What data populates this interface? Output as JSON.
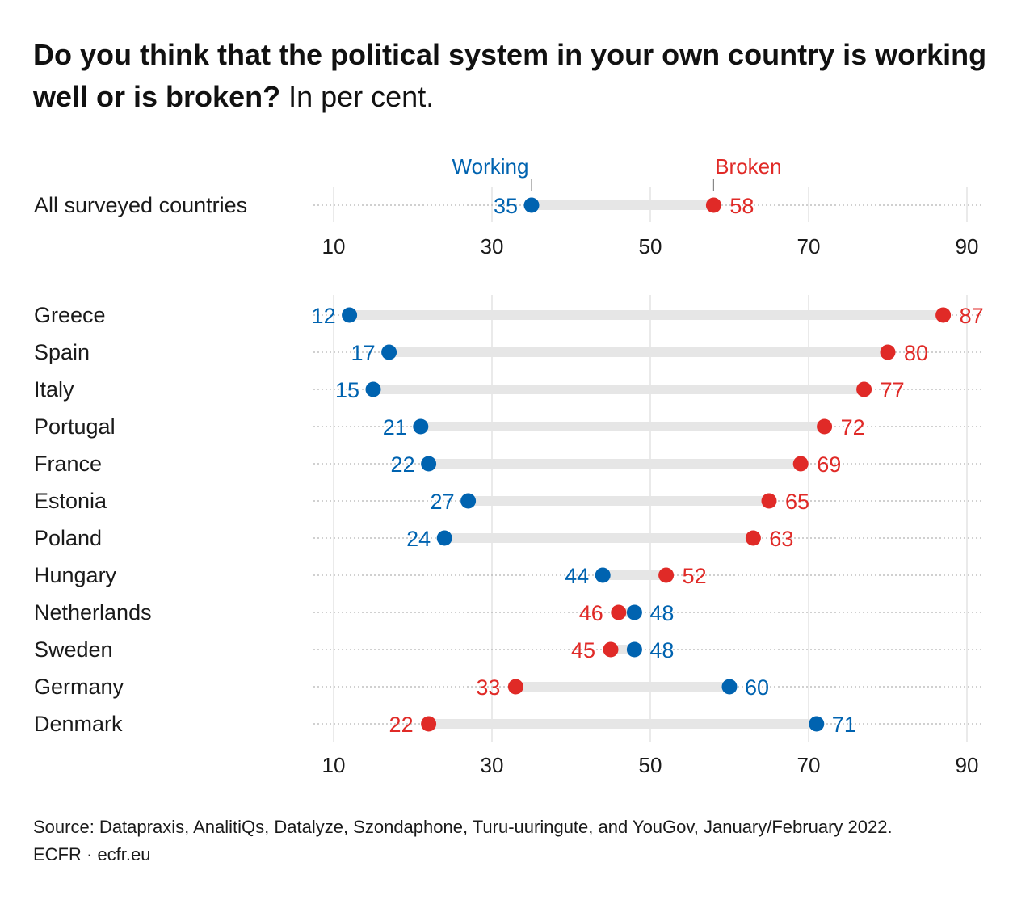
{
  "title": {
    "bold": "Do you think that the political system in your own country is working well or is broken?",
    "unit": "In per cent."
  },
  "chart_data": {
    "type": "dot_range",
    "xlim": [
      10,
      90
    ],
    "ticks": [
      10,
      30,
      50,
      70,
      90
    ],
    "grid": true,
    "legend": {
      "working": "Working",
      "broken": "Broken"
    },
    "colors": {
      "working": "#0063b0",
      "broken": "#e02a27",
      "bar": "#e6e6e6"
    },
    "overall": {
      "label": "All surveyed countries",
      "working": 35,
      "broken": 58
    },
    "countries": [
      {
        "label": "Greece",
        "working": 12,
        "broken": 87
      },
      {
        "label": "Spain",
        "working": 17,
        "broken": 80
      },
      {
        "label": "Italy",
        "working": 15,
        "broken": 77
      },
      {
        "label": "Portugal",
        "working": 21,
        "broken": 72
      },
      {
        "label": "France",
        "working": 22,
        "broken": 69
      },
      {
        "label": "Estonia",
        "working": 27,
        "broken": 65
      },
      {
        "label": "Poland",
        "working": 24,
        "broken": 63
      },
      {
        "label": "Hungary",
        "working": 44,
        "broken": 52
      },
      {
        "label": "Netherlands",
        "working": 48,
        "broken": 46
      },
      {
        "label": "Sweden",
        "working": 48,
        "broken": 45
      },
      {
        "label": "Germany",
        "working": 60,
        "broken": 33
      },
      {
        "label": "Denmark",
        "working": 71,
        "broken": 22
      }
    ]
  },
  "footer": {
    "source": "Source: Datapraxis, AnalitiQs, Datalyze, Szondaphone, Turu-uuringute, and YouGov, January/February 2022.",
    "credit": "ECFR · ecfr.eu"
  }
}
